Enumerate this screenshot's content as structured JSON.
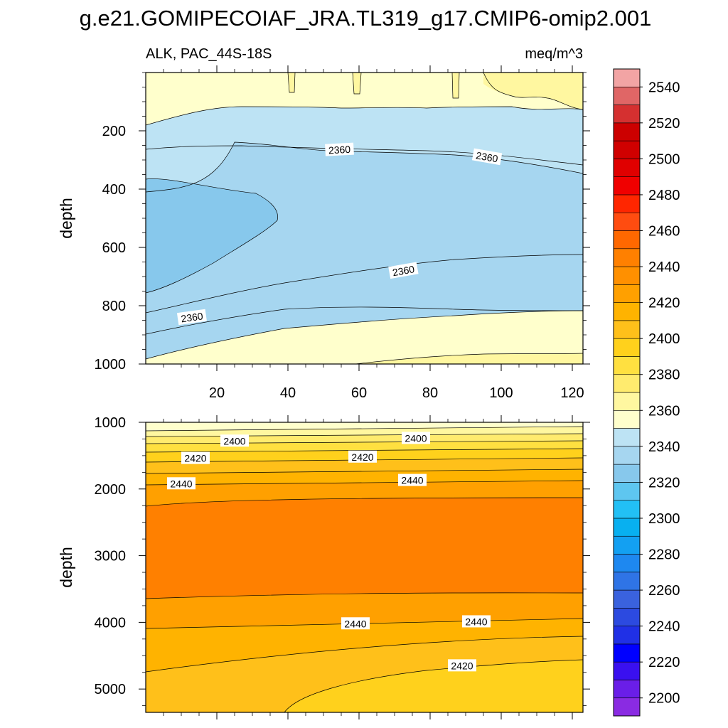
{
  "title": "g.e21.GOMIPECOIAF_JRA.TL319_g17.CMIP6-omip2.001",
  "colors": {
    "levels": [
      "#8a2be2",
      "#6a1ee8",
      "#3a10f0",
      "#0000ff",
      "#2030e6",
      "#2c4ae0",
      "#3a62de",
      "#2f74e6",
      "#1e88f0",
      "#13a0f2",
      "#08b0f0",
      "#22c0f5",
      "#5ec6f0",
      "#87c8ec",
      "#a6d6f0",
      "#bde3f4",
      "#ffffcc",
      "#fff7a0",
      "#ffeb6e",
      "#ffe040",
      "#ffd11c",
      "#ffc01a",
      "#ffb300",
      "#ffa000",
      "#ff9000",
      "#ff8000",
      "#ff6800",
      "#ff4c10",
      "#ff2600",
      "#f00000",
      "#e00000",
      "#d00000",
      "#cc0000",
      "#d53030",
      "#e06666",
      "#f2a4a4"
    ]
  },
  "chart_data": [
    {
      "type": "contour",
      "subtitle_left": "ALK, PAC_44S-18S",
      "subtitle_right": "meq/m^3",
      "ylabel": "depth",
      "xlim": [
        0,
        123
      ],
      "ylim": [
        1000,
        0
      ],
      "x_ticks": [
        20,
        40,
        60,
        80,
        100,
        120
      ],
      "x_tick_labels": [
        "20",
        "40",
        "60",
        "80",
        "100",
        "120"
      ],
      "y_ticks": [
        200,
        400,
        600,
        800,
        1000
      ],
      "y_tick_labels": [
        "200",
        "400",
        "600",
        "800",
        "1000"
      ],
      "contour_labels": [
        {
          "text": "2360",
          "x": 54.5,
          "y": 265,
          "angle": -3
        },
        {
          "text": "2360",
          "x": 96,
          "y": 290,
          "angle": 10
        },
        {
          "text": "2360",
          "x": 72.5,
          "y": 680,
          "angle": -10
        },
        {
          "text": "2360",
          "x": 13,
          "y": 840,
          "angle": -8
        }
      ]
    },
    {
      "type": "contour",
      "subtitle_left": "",
      "subtitle_right": "",
      "ylabel": "depth",
      "xlim": [
        0,
        123
      ],
      "ylim": [
        5350,
        1000
      ],
      "x_ticks": [
        20,
        40,
        60,
        80,
        100,
        120
      ],
      "x_tick_labels": [
        "",
        "",
        "",
        "",
        "",
        ""
      ],
      "y_ticks": [
        1000,
        2000,
        3000,
        4000,
        5000
      ],
      "y_tick_labels": [
        "1000",
        "2000",
        "3000",
        "4000",
        "5000"
      ],
      "contour_labels": [
        {
          "text": "2400",
          "x": 25,
          "y": 1280,
          "angle": 0
        },
        {
          "text": "2400",
          "x": 76,
          "y": 1240,
          "angle": 0
        },
        {
          "text": "2420",
          "x": 14,
          "y": 1540,
          "angle": 0
        },
        {
          "text": "2420",
          "x": 61,
          "y": 1520,
          "angle": 0
        },
        {
          "text": "2440",
          "x": 10,
          "y": 1920,
          "angle": 0
        },
        {
          "text": "2440",
          "x": 75,
          "y": 1870,
          "angle": 0
        },
        {
          "text": "2440",
          "x": 59,
          "y": 4020,
          "angle": 0
        },
        {
          "text": "2440",
          "x": 93,
          "y": 3990,
          "angle": 0
        },
        {
          "text": "2420",
          "x": 89,
          "y": 4650,
          "angle": 0
        }
      ]
    }
  ],
  "colorbar": {
    "labels": [
      "2200",
      "2220",
      "2240",
      "2260",
      "2280",
      "2300",
      "2320",
      "2340",
      "2360",
      "2380",
      "2400",
      "2420",
      "2440",
      "2460",
      "2480",
      "2500",
      "2520",
      "2540"
    ]
  }
}
